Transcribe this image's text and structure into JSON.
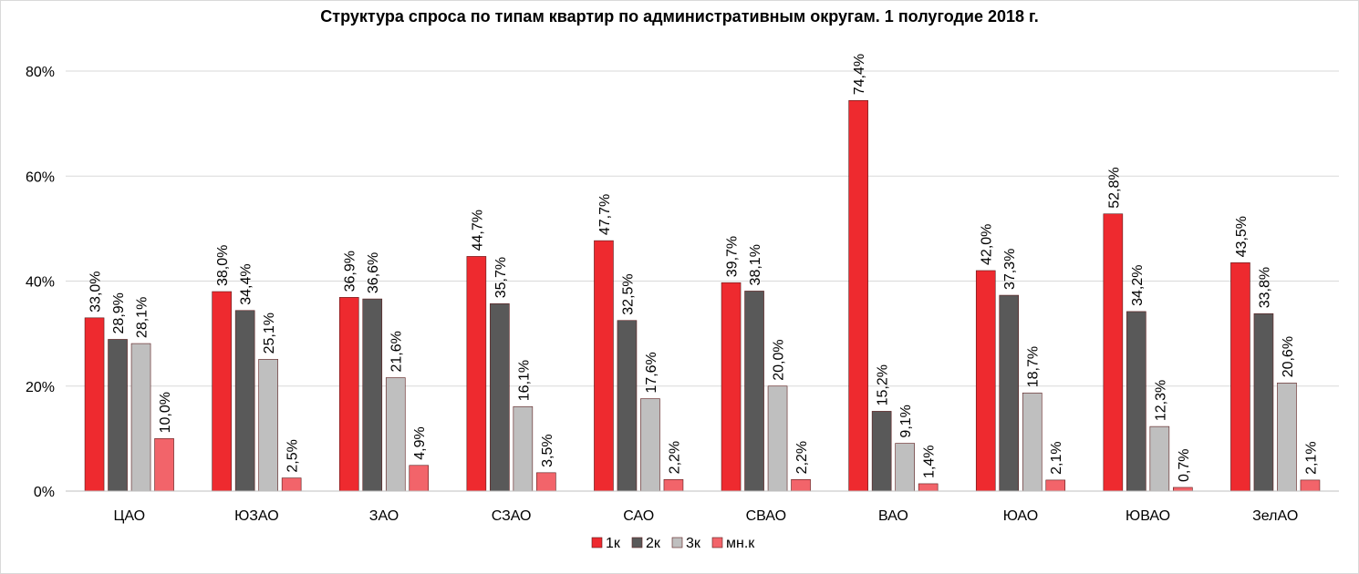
{
  "chart_data": {
    "type": "bar",
    "title": "Структура  спроса по типам квартир по административным округам. 1 полугодие 2018 г.",
    "xlabel": "",
    "ylabel": "",
    "ylim": [
      0,
      80
    ],
    "yticks": [
      0,
      20,
      40,
      60,
      80
    ],
    "ytick_labels": [
      "0%",
      "20%",
      "40%",
      "60%",
      "80%"
    ],
    "grid": true,
    "legend_position": "bottom",
    "categories": [
      "ЦАО",
      "ЮЗАО",
      "ЗАО",
      "СЗАО",
      "САО",
      "СВАО",
      "ВАО",
      "ЮАО",
      "ЮВАО",
      "ЗелАО"
    ],
    "series": [
      {
        "name": "1к",
        "color": "#ee2a2f",
        "values": [
          33.0,
          38.0,
          36.9,
          44.7,
          47.7,
          39.7,
          74.4,
          42.0,
          52.8,
          43.5
        ],
        "labels": [
          "33,0%",
          "38,0%",
          "36,9%",
          "44,7%",
          "47,7%",
          "39,7%",
          "74,4%",
          "42,0%",
          "52,8%",
          "43,5%"
        ]
      },
      {
        "name": "2к",
        "color": "#595959",
        "values": [
          28.9,
          34.4,
          36.6,
          35.7,
          32.5,
          38.1,
          15.2,
          37.3,
          34.2,
          33.8
        ],
        "labels": [
          "28,9%",
          "34,4%",
          "36,6%",
          "35,7%",
          "32,5%",
          "38,1%",
          "15,2%",
          "37,3%",
          "34,2%",
          "33,8%"
        ]
      },
      {
        "name": "3к",
        "color": "#bfbfbf",
        "values": [
          28.1,
          25.1,
          21.6,
          16.1,
          17.6,
          20.0,
          9.1,
          18.7,
          12.3,
          20.6
        ],
        "labels": [
          "28,1%",
          "25,1%",
          "21,6%",
          "16,1%",
          "17,6%",
          "20,0%",
          "9,1%",
          "18,7%",
          "12,3%",
          "20,6%"
        ]
      },
      {
        "name": "мн.к",
        "color": "#f2646a",
        "values": [
          10.0,
          2.5,
          4.9,
          3.5,
          2.2,
          2.2,
          1.4,
          2.1,
          0.7,
          2.1
        ],
        "labels": [
          "10,0%",
          "2,5%",
          "4,9%",
          "3,5%",
          "2,2%",
          "2,2%",
          "1,4%",
          "2,1%",
          "0,7%",
          "2,1%"
        ]
      }
    ]
  }
}
